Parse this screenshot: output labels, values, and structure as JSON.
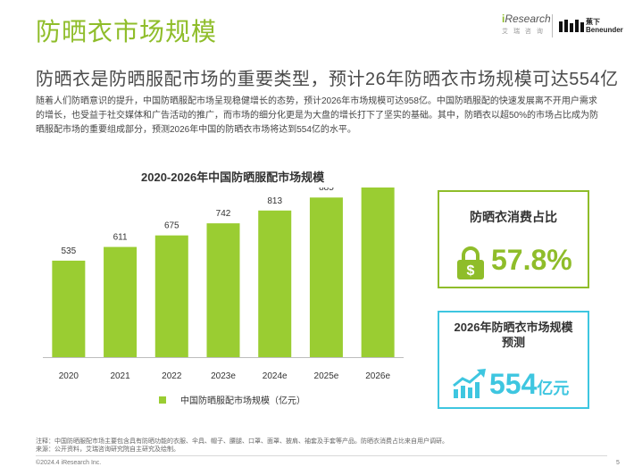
{
  "header": {
    "title": "防晒衣市场规模",
    "subtitle": "防晒衣是防晒服配市场的重要类型，预计26年防晒衣市场规模可达554亿",
    "intro": "随着人们防晒意识的提升，中国防晒服配市场呈现稳健增长的态势，预计2026年市场规模可达958亿。中国防晒服配的快速发展离不开用户需求的增长，也受益于社交媒体和广告活动的推广，而市场的细分化更是为大盘的增长打下了坚实的基础。其中，防晒衣以超50%的市场占比成为防晒服配市场的重要组成部分，预测2026年中国的防晒衣市场将达到554亿的水平。"
  },
  "logos": {
    "iresearch_brand_prefix": "i",
    "iresearch_brand": "Research",
    "iresearch_sub": "艾 瑞 咨 询",
    "beneunder_cn": "蕉下",
    "beneunder_en": "Beneunder"
  },
  "chart_data": {
    "type": "bar",
    "title": "2020-2026年中国防晒服配市场规模",
    "categories": [
      "2020",
      "2021",
      "2022",
      "2023e",
      "2024e",
      "2025e",
      "2026e"
    ],
    "series": [
      {
        "name": "中国防晒服配市场规模（亿元）",
        "values": [
          535,
          611,
          675,
          742,
          813,
          885,
          958
        ],
        "color": "#9acd32"
      }
    ],
    "ylim": [
      0,
      1000
    ],
    "grid": false,
    "legend": "bottom",
    "data_labels": true
  },
  "cards": {
    "share": {
      "label": "防晒衣消费占比",
      "value": "57.8%",
      "color": "#8fbd2a",
      "icon": "lock-dollar-icon"
    },
    "size": {
      "label_line1": "2026年防晒衣市场规模",
      "label_line2": "预测",
      "value": "554",
      "unit": "亿元",
      "color": "#3ec6e0",
      "icon": "growth-trend-icon"
    }
  },
  "footer": {
    "note": "注释：中国防晒服配市场主要包含具有防晒功能的衣服、伞具、帽子、腰腿、口罩、面罩、披肩、袖套及手套等产品。防晒衣消费占比来自用户调研。",
    "source": "来源：公开资料，艾瑞咨询研究院自主研究及绘制。",
    "copyright": "©2024.4 iResearch Inc.",
    "page": "5"
  }
}
